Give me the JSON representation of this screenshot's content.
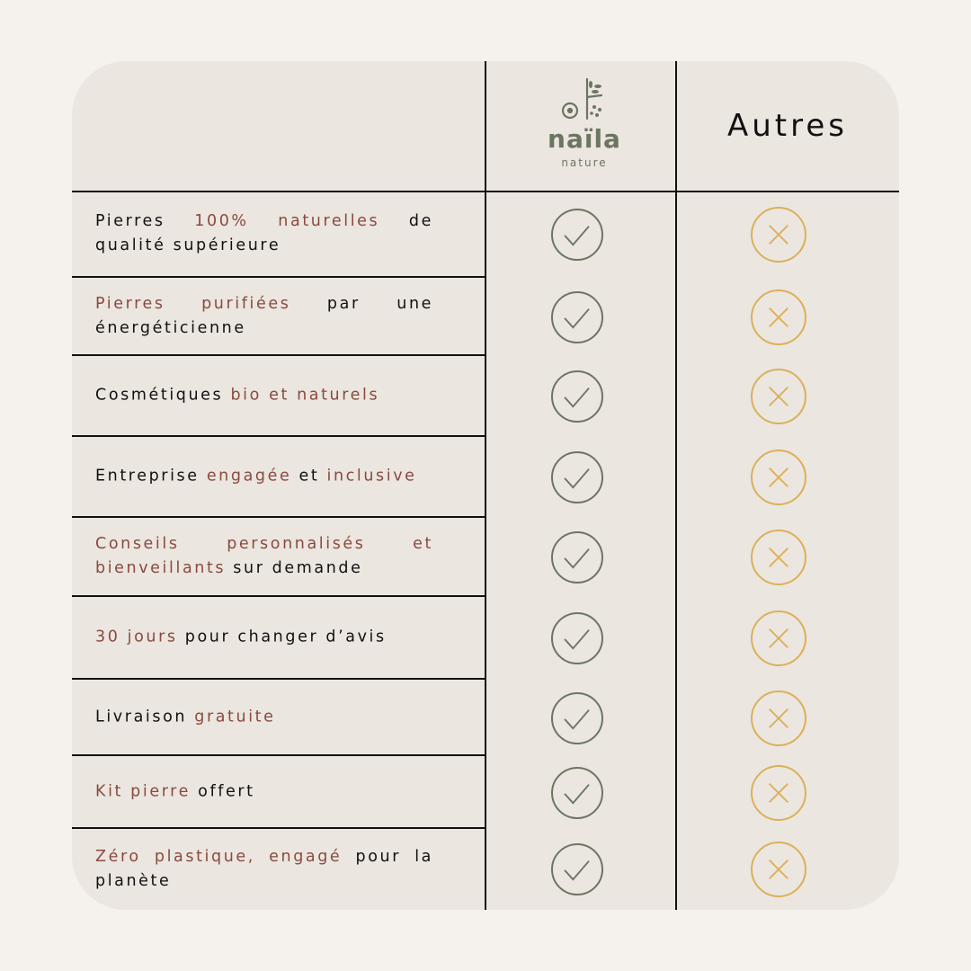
{
  "header": {
    "brand_name": "naïla",
    "brand_sub": "nature",
    "competitor_label": "Autres"
  },
  "colors": {
    "background": "#f5f2ed",
    "card": "#ebe6e0",
    "accent": "#8a4a3e",
    "check": "#6b7560",
    "cross": "#dcb05a"
  },
  "rows": [
    {
      "parts": [
        {
          "t": "Pierres ",
          "a": false
        },
        {
          "t": "100% naturelles",
          "a": true
        },
        {
          "t": " de qualité supérieure",
          "a": false
        }
      ],
      "naila": "check-icon",
      "autres": "cross-icon"
    },
    {
      "parts": [
        {
          "t": "Pierres purifiées",
          "a": true
        },
        {
          "t": " par une énergéticienne",
          "a": false
        }
      ],
      "naila": "check-icon",
      "autres": "cross-icon"
    },
    {
      "parts": [
        {
          "t": "Cosmétiques ",
          "a": false
        },
        {
          "t": "bio et naturels",
          "a": true
        }
      ],
      "naila": "check-icon",
      "autres": "cross-icon"
    },
    {
      "parts": [
        {
          "t": "Entreprise ",
          "a": false
        },
        {
          "t": "engagée",
          "a": true
        },
        {
          "t": " et ",
          "a": false
        },
        {
          "t": "inclusive",
          "a": true
        }
      ],
      "naila": "check-icon",
      "autres": "cross-icon"
    },
    {
      "parts": [
        {
          "t": "Conseils personnalisés et bienveillants",
          "a": true
        },
        {
          "t": " sur demande",
          "a": false
        }
      ],
      "naila": "check-icon",
      "autres": "cross-icon"
    },
    {
      "parts": [
        {
          "t": "30 jours",
          "a": true
        },
        {
          "t": " pour changer d’avis",
          "a": false
        }
      ],
      "naila": "check-icon",
      "autres": "cross-icon"
    },
    {
      "parts": [
        {
          "t": "Livraison ",
          "a": false
        },
        {
          "t": "gratuite",
          "a": true
        }
      ],
      "naila": "check-icon",
      "autres": "cross-icon"
    },
    {
      "parts": [
        {
          "t": "Kit pierre",
          "a": true
        },
        {
          "t": " offert",
          "a": false
        }
      ],
      "naila": "check-icon",
      "autres": "cross-icon"
    },
    {
      "parts": [
        {
          "t": "Zéro plastique, engagé",
          "a": true
        },
        {
          "t": " pour la planète",
          "a": false
        }
      ],
      "naila": "check-icon",
      "autres": "cross-icon"
    }
  ]
}
